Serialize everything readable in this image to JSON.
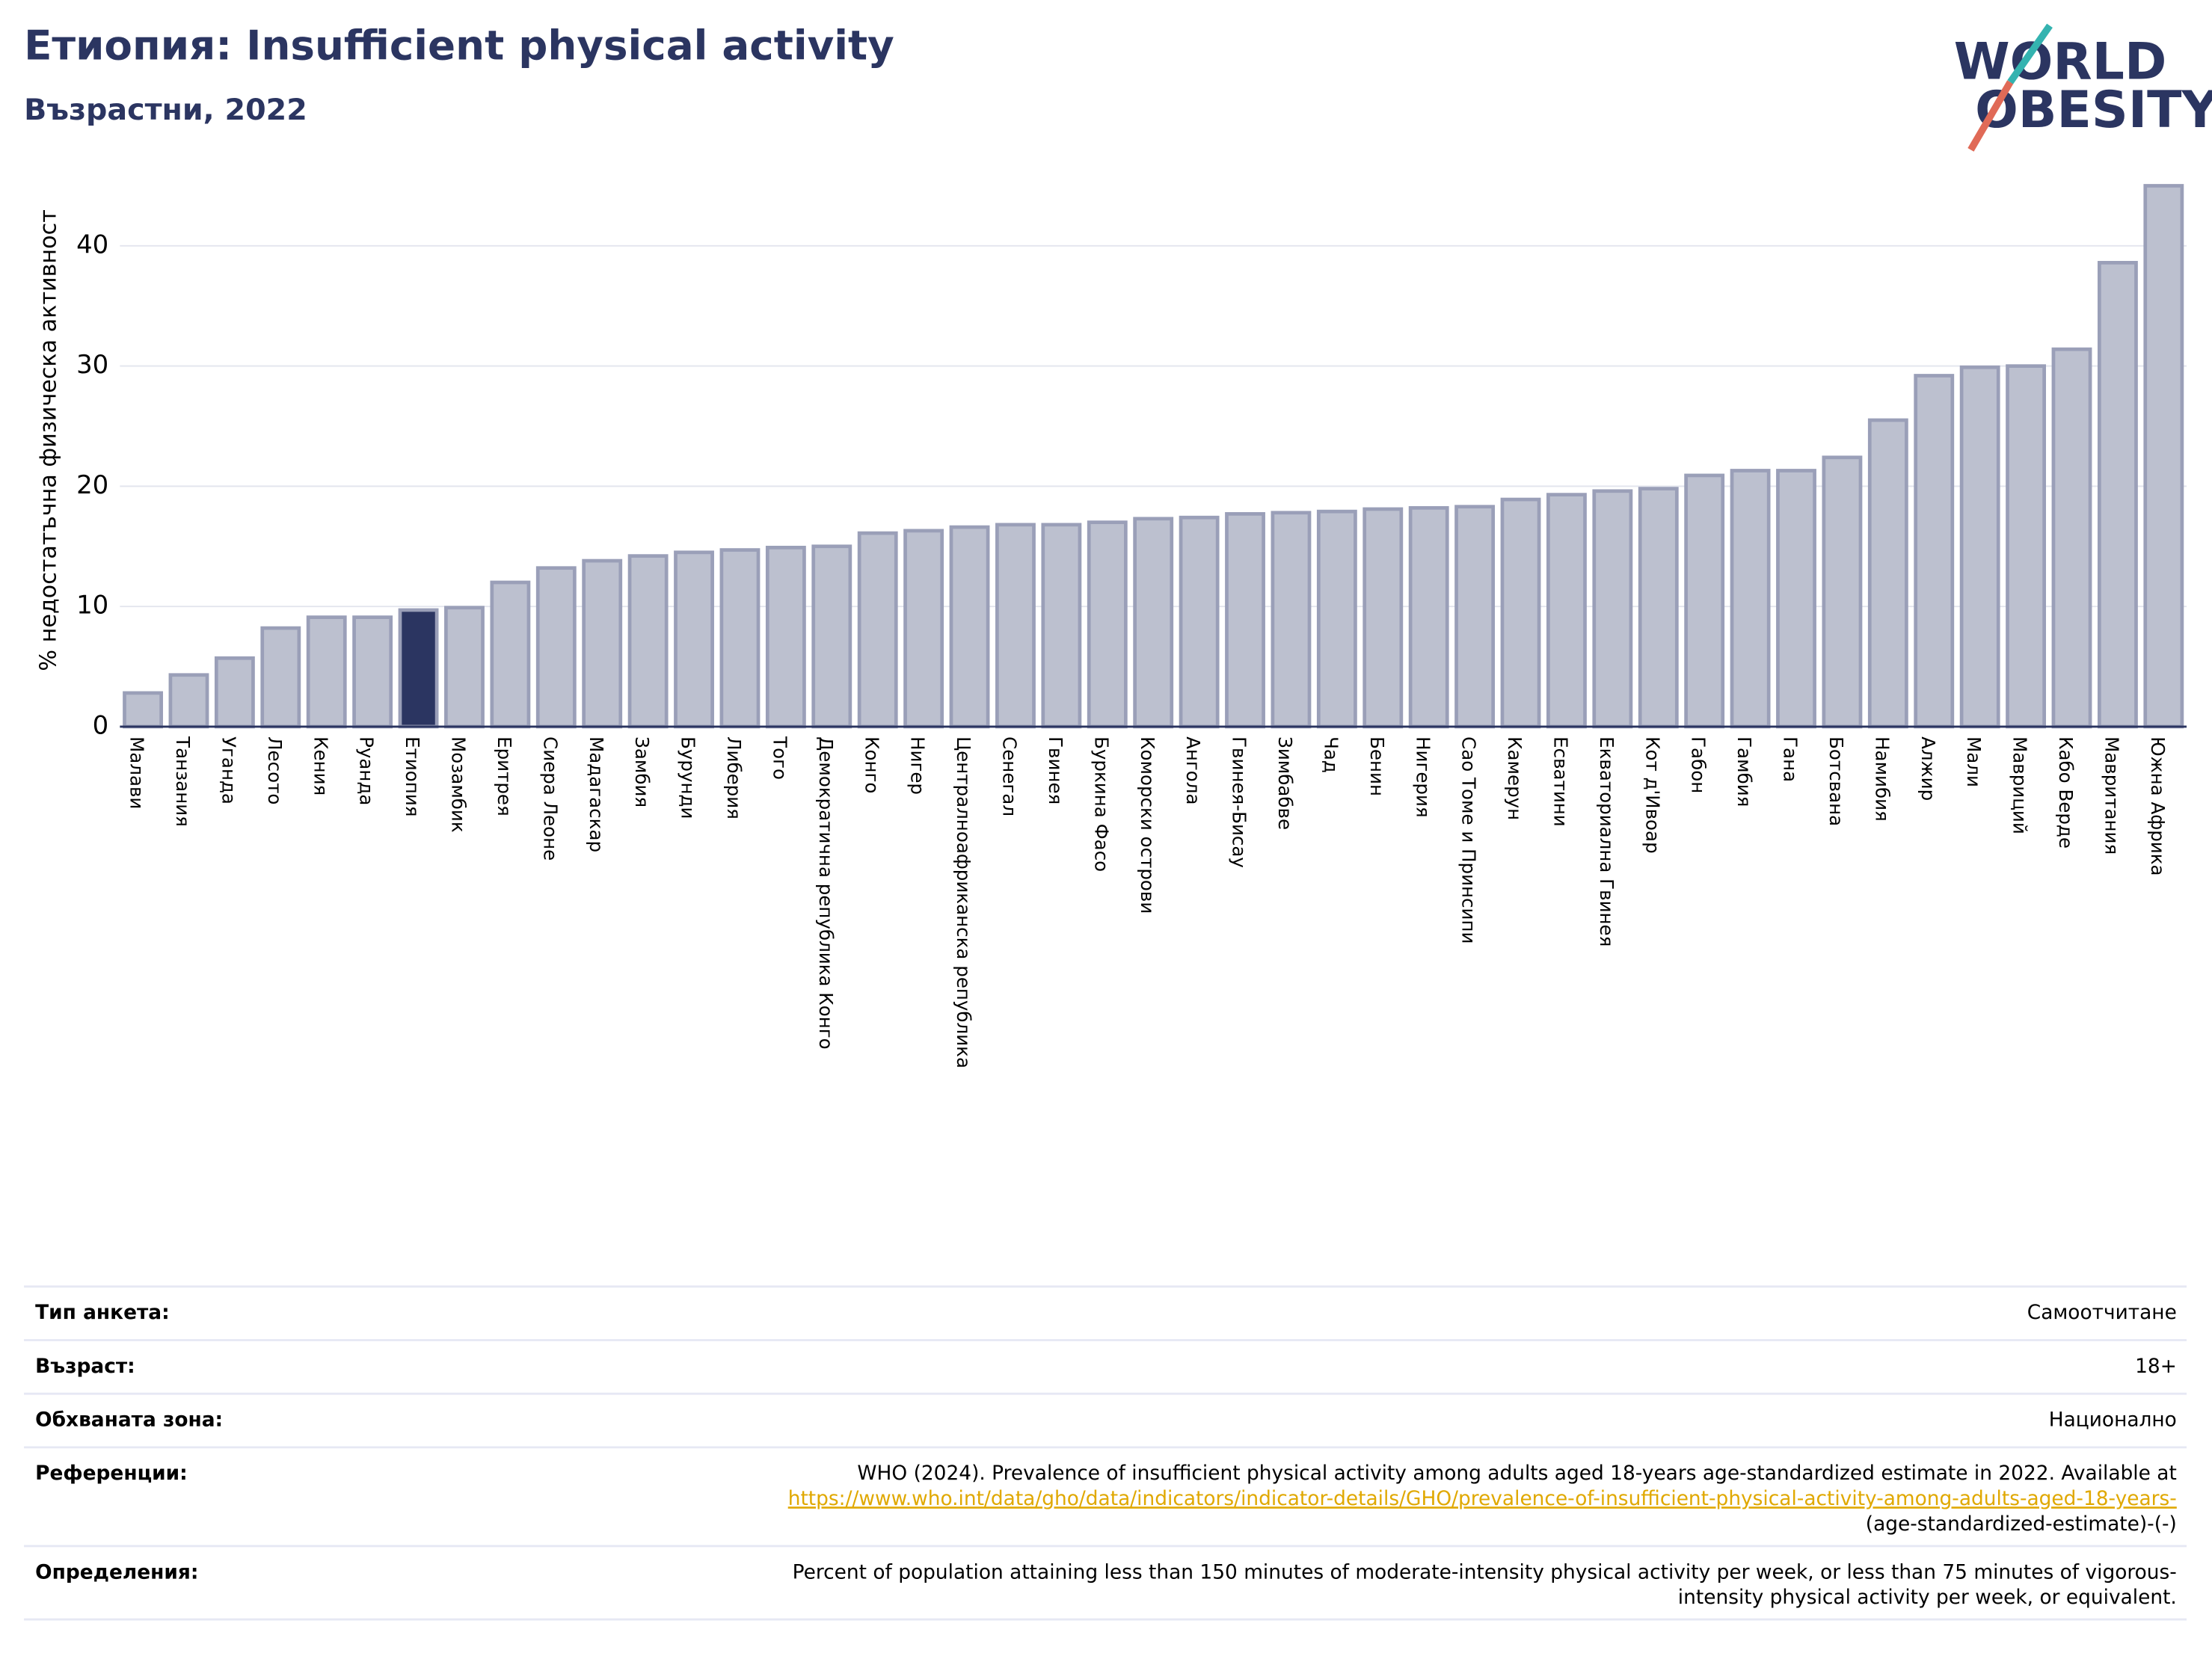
{
  "chart_data": {
    "type": "bar",
    "title": "Етиопия: Insufficient physical activity",
    "subtitle": "Възрастни, 2022",
    "y_label": "% недостатъчна физическа активност",
    "categories": [
      "Малави",
      "Танзания",
      "Уганда",
      "Лесото",
      "Кения",
      "Руанда",
      "Етиопия",
      "Мозамбик",
      "Еритрея",
      "Сиера Леоне",
      "Мадагаскар",
      "Замбия",
      "Бурунди",
      "Либерия",
      "Того",
      "Демократична република Конго",
      "Конго",
      "Нигер",
      "Централноафриканска република",
      "Сенегал",
      "Гвинея",
      "Буркина Фасо",
      "Коморски острови",
      "Ангола",
      "Гвинея-Бисау",
      "Зимбабве",
      "Чад",
      "Бенин",
      "Нигерия",
      "Сао Томе и Принсипи",
      "Камерун",
      "Есватини",
      "Екваториална Гвинея",
      "Кот д'Ивоар",
      "Габон",
      "Гамбия",
      "Гана",
      "Ботсвана",
      "Намибия",
      "Алжир",
      "Мали",
      "Мавриций",
      "Кабо Верде",
      "Мавритания",
      "Южна Африка"
    ],
    "values": [
      2.8,
      4.3,
      5.7,
      8.2,
      9.1,
      9.1,
      9.7,
      9.9,
      12.0,
      13.2,
      13.8,
      14.2,
      14.5,
      14.7,
      14.9,
      15.0,
      16.1,
      16.3,
      16.6,
      16.8,
      16.8,
      17.0,
      17.3,
      17.4,
      17.7,
      17.8,
      17.9,
      18.1,
      18.2,
      18.3,
      18.9,
      19.3,
      19.6,
      19.8,
      20.9,
      21.3,
      21.3,
      22.4,
      25.5,
      29.2,
      29.9,
      30.0,
      31.4,
      38.6,
      45.0
    ],
    "colors": [
      "#bcc0cf",
      "#bcc0cf",
      "#bcc0cf",
      "#bcc0cf",
      "#bcc0cf",
      "#bcc0cf",
      "#2b3561",
      "#bcc0cf",
      "#bcc0cf",
      "#bcc0cf",
      "#bcc0cf",
      "#bcc0cf",
      "#bcc0cf",
      "#bcc0cf",
      "#bcc0cf",
      "#bcc0cf",
      "#bcc0cf",
      "#bcc0cf",
      "#bcc0cf",
      "#bcc0cf",
      "#bcc0cf",
      "#bcc0cf",
      "#bcc0cf",
      "#bcc0cf",
      "#bcc0cf",
      "#bcc0cf",
      "#bcc0cf",
      "#bcc0cf",
      "#bcc0cf",
      "#bcc0cf",
      "#bcc0cf",
      "#bcc0cf",
      "#bcc0cf",
      "#bcc0cf",
      "#bcc0cf",
      "#bcc0cf",
      "#bcc0cf",
      "#bcc0cf",
      "#bcc0cf",
      "#bcc0cf",
      "#bcc0cf",
      "#bcc0cf",
      "#bcc0cf",
      "#bcc0cf",
      "#bcc0cf"
    ],
    "edge_color": "#9a9fb8",
    "ylim": [
      0,
      46
    ],
    "yticks": [
      0,
      10,
      20,
      30,
      40
    ],
    "grid": true
  },
  "logo": {
    "line1": "WORLD",
    "line2": "OBESITY"
  },
  "table": {
    "rows": [
      {
        "label": "Тип анкета:",
        "value_lines": [
          "Самоотчитане"
        ]
      },
      {
        "label": "Възраст:",
        "value_lines": [
          "18+"
        ]
      },
      {
        "label": "Обхваната зона:",
        "value_lines": [
          "Национално"
        ]
      },
      {
        "label": "Референции:",
        "value_lines": [
          "WHO (2024). Prevalence of insufficient physical activity among adults aged 18-years age-standardized estimate in 2022. Available at",
          "https://www.who.int/data/gho/data/indicators/indicator-details/GHO/prevalence-of-insufficient-physical-activity-among-adults-aged-18-years-",
          "(age-standardized-estimate)-(-)"
        ]
      },
      {
        "label": "Определения:",
        "value_lines": [
          "Percent of population attaining less than 150 minutes of moderate-intensity physical activity per week, or less than 75 minutes of vigorous-",
          "intensity physical activity per week, or equivalent."
        ]
      }
    ]
  }
}
